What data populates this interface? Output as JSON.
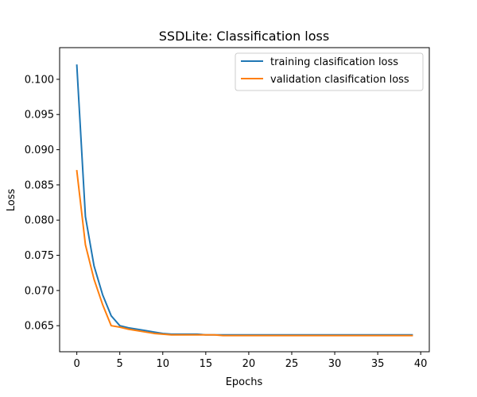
{
  "chart_data": {
    "type": "line",
    "title": "SSDLite: Classification loss",
    "xlabel": "Epochs",
    "ylabel": "Loss",
    "xlim": [
      -2,
      41
    ],
    "ylim": [
      0.0613,
      0.1045
    ],
    "xticks": [
      0,
      5,
      10,
      15,
      20,
      25,
      30,
      35,
      40
    ],
    "yticks": [
      0.065,
      0.07,
      0.075,
      0.08,
      0.085,
      0.09,
      0.095,
      0.1
    ],
    "ytick_labels": [
      "0.065",
      "0.070",
      "0.075",
      "0.080",
      "0.085",
      "0.090",
      "0.095",
      "0.100"
    ],
    "grid": false,
    "legend_position": "top-right",
    "x": [
      0,
      1,
      2,
      3,
      4,
      5,
      6,
      7,
      8,
      9,
      10,
      11,
      12,
      13,
      14,
      15,
      16,
      17,
      18,
      19,
      20,
      21,
      22,
      23,
      24,
      25,
      26,
      27,
      28,
      29,
      30,
      31,
      32,
      33,
      34,
      35,
      36,
      37,
      38,
      39
    ],
    "series": [
      {
        "name": "training clasification loss",
        "color": "#1f77b4",
        "values": [
          0.102,
          0.0805,
          0.0735,
          0.0694,
          0.0664,
          0.065,
          0.0647,
          0.0645,
          0.0643,
          0.0641,
          0.0639,
          0.0638,
          0.0638,
          0.0638,
          0.0638,
          0.0637,
          0.0637,
          0.0637,
          0.0637,
          0.0637,
          0.0637,
          0.0637,
          0.0637,
          0.0637,
          0.0637,
          0.0637,
          0.0637,
          0.0637,
          0.0637,
          0.0637,
          0.0637,
          0.0637,
          0.0637,
          0.0637,
          0.0637,
          0.0637,
          0.0637,
          0.0637,
          0.0637,
          0.0637
        ]
      },
      {
        "name": "validation clasification loss",
        "color": "#ff7f0e",
        "values": [
          0.087,
          0.0765,
          0.0716,
          0.068,
          0.065,
          0.0648,
          0.0645,
          0.0643,
          0.0641,
          0.0639,
          0.0638,
          0.0637,
          0.0637,
          0.0637,
          0.0637,
          0.0637,
          0.0637,
          0.0636,
          0.0636,
          0.0636,
          0.0636,
          0.0636,
          0.0636,
          0.0636,
          0.0636,
          0.0636,
          0.0636,
          0.0636,
          0.0636,
          0.0636,
          0.0636,
          0.0636,
          0.0636,
          0.0636,
          0.0636,
          0.0636,
          0.0636,
          0.0636,
          0.0636,
          0.0636
        ]
      }
    ]
  }
}
